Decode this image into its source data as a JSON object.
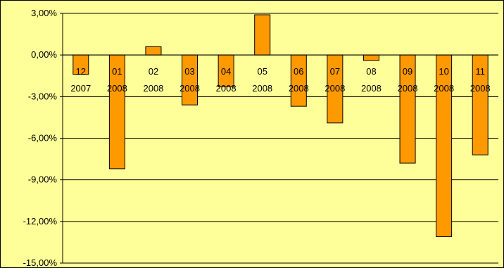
{
  "chart_data": {
    "type": "bar",
    "categories": [
      [
        "12",
        "2007"
      ],
      [
        "01",
        "2008"
      ],
      [
        "02",
        "2008"
      ],
      [
        "03",
        "2008"
      ],
      [
        "04",
        "2008"
      ],
      [
        "05",
        "2008"
      ],
      [
        "06",
        "2008"
      ],
      [
        "07",
        "2008"
      ],
      [
        "08",
        "2008"
      ],
      [
        "09",
        "2008"
      ],
      [
        "10",
        "2008"
      ],
      [
        "11",
        "2008"
      ]
    ],
    "values": [
      -1.4,
      -8.2,
      0.6,
      -3.6,
      -2.3,
      2.9,
      -3.7,
      -4.9,
      -0.4,
      -7.8,
      -13.1,
      -7.2
    ],
    "ylim": [
      -15,
      3
    ],
    "yticks": [
      3,
      0,
      -3,
      -6,
      -9,
      -12,
      -15
    ],
    "ytick_labels": [
      "3,00%",
      "0,00%",
      "-3,00%",
      "-6,00%",
      "-9,00%",
      "-12,00%",
      "-15,00%"
    ],
    "grid": true,
    "legend": "none",
    "bar_color": "#ff9900",
    "bar_stroke": "#000000",
    "plot_background": "#ffff99"
  }
}
